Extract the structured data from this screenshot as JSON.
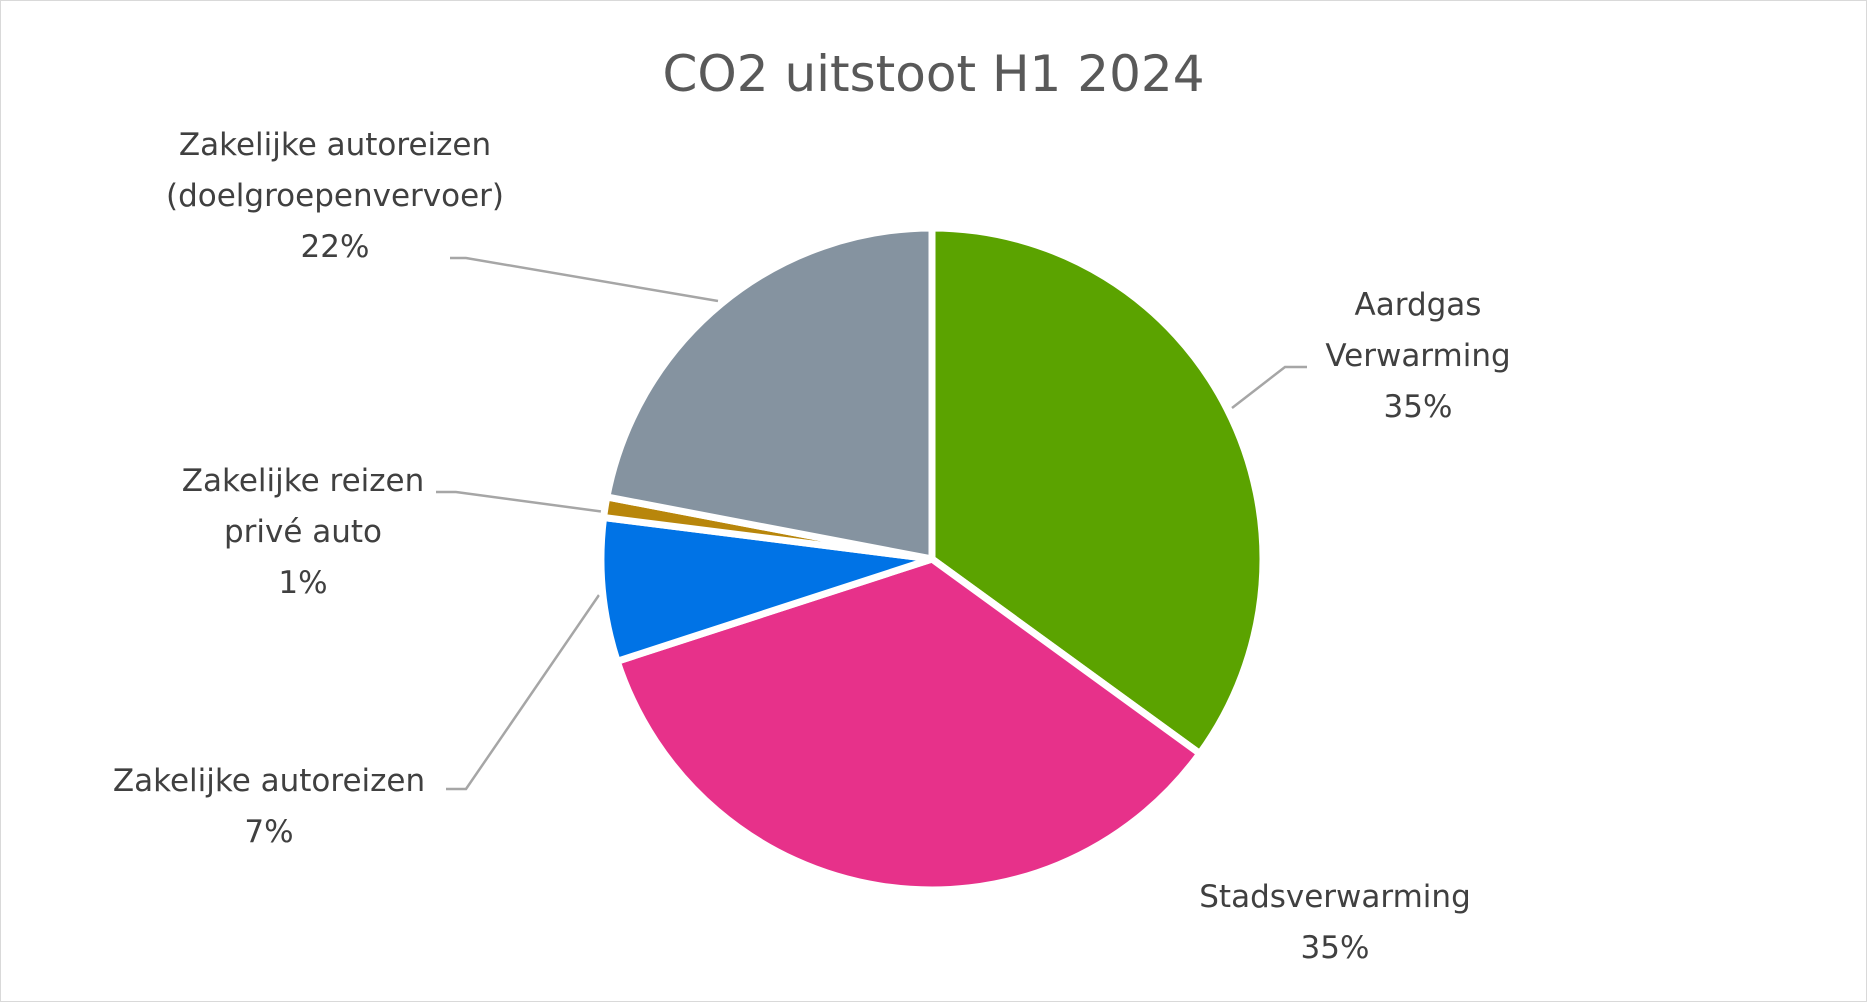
{
  "chart_data": {
    "type": "pie",
    "title": "CO2 uitstoot H1 2024",
    "categories": [
      "Aardgas Verwarming",
      "Stadsverwarming",
      "Zakelijke autoreizen",
      "Zakelijke reizen privé auto",
      "Zakelijke autoreizen (doelgroepenvervoer)"
    ],
    "values": [
      35,
      35,
      7,
      1,
      22
    ],
    "value_labels": [
      "35%",
      "35%",
      "7%",
      "1%",
      "22%"
    ],
    "colors": [
      "#5ba300",
      "#e7318a",
      "#0073e6",
      "#b8860b",
      "#8593a0"
    ]
  }
}
